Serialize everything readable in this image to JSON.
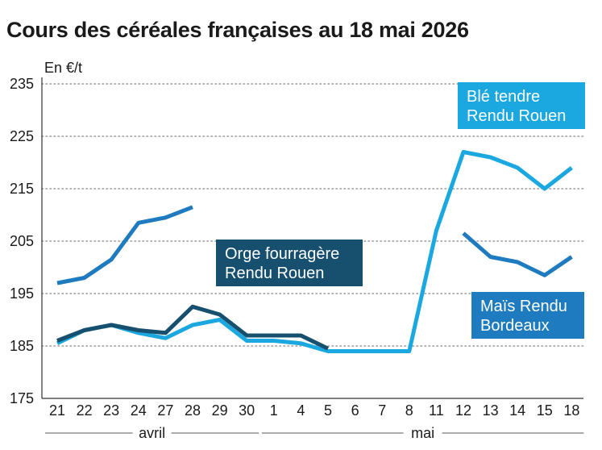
{
  "chart_data": {
    "type": "line",
    "title": "Cours des céréales françaises au 18 mai 2026",
    "ylabel": "En €/t",
    "ylim": [
      175,
      235
    ],
    "yticks": [
      175,
      185,
      195,
      205,
      215,
      225,
      235
    ],
    "grid": "horizontal dotted",
    "categories": [
      "21",
      "22",
      "23",
      "24",
      "27",
      "28",
      "29",
      "30",
      "1",
      "4",
      "5",
      "6",
      "7",
      "8",
      "11",
      "12",
      "13",
      "14",
      "15",
      "18"
    ],
    "month_groups": [
      {
        "label": "avril",
        "from": 0,
        "to": 7
      },
      {
        "label": "mai",
        "from": 8,
        "to": 19
      }
    ],
    "series": [
      {
        "name": "Blé tendre Rendu Rouen",
        "color": "#1ba8e0",
        "values": [
          185.5,
          188,
          189,
          187.5,
          186.5,
          189,
          190,
          186,
          186,
          185.5,
          184,
          184,
          184,
          184,
          207,
          222,
          221,
          219,
          215,
          219
        ]
      },
      {
        "name": "Orge fourragère Rendu Rouen",
        "color": "#17506e",
        "values": [
          186,
          188,
          189,
          188,
          187.5,
          192.5,
          191,
          187,
          187,
          187,
          184.5,
          null,
          null,
          null,
          null,
          null,
          null,
          null,
          null,
          null
        ]
      },
      {
        "name": "Maïs Rendu Bordeaux",
        "color": "#1f7bbf",
        "values": [
          197,
          198,
          201.5,
          208.5,
          209.5,
          211.5,
          null,
          null,
          null,
          null,
          null,
          null,
          null,
          null,
          null,
          206.5,
          202,
          201,
          198.5,
          202
        ]
      }
    ],
    "labels": [
      {
        "series": 0,
        "lines": [
          "Blé tendre",
          "Rendu Rouen"
        ],
        "color": "#1ba8e0"
      },
      {
        "series": 1,
        "lines": [
          "Orge fourragère",
          "Rendu Rouen"
        ],
        "color": "#17506e"
      },
      {
        "series": 2,
        "lines": [
          "Maïs Rendu",
          "Bordeaux"
        ],
        "color": "#1f7bbf"
      }
    ]
  }
}
